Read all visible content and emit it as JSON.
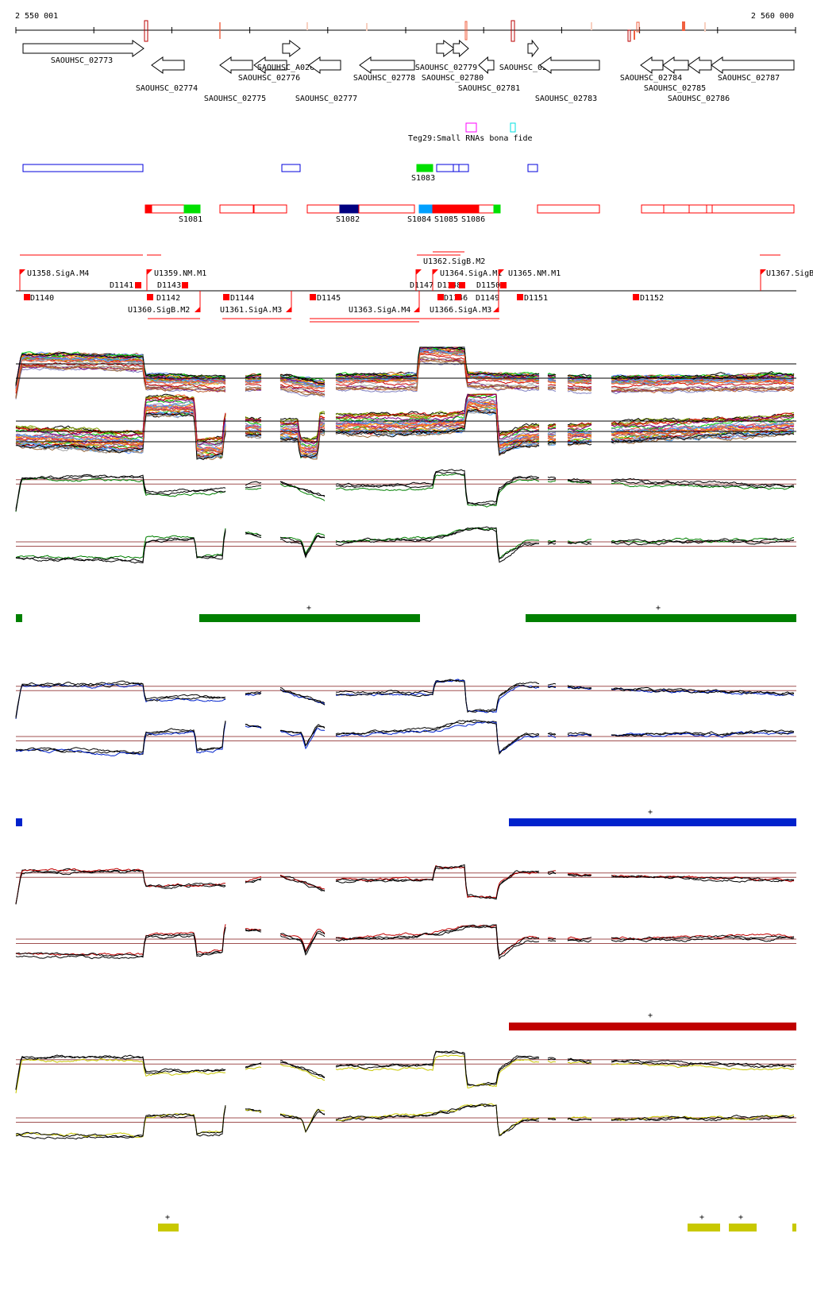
{
  "ruler": {
    "start_label": "2 550 001",
    "end_label": "2 560 000"
  },
  "genes": [
    {
      "id": "SAOUHSC_02773",
      "strand": "+"
    },
    {
      "id": "SAOUHSC_02774",
      "strand": "-"
    },
    {
      "id": "SAOUHSC_02775",
      "strand": "-"
    },
    {
      "id": "SAOUHSC_02776",
      "strand": "-"
    },
    {
      "id": "SAOUHSC_A02635",
      "strand": "+"
    },
    {
      "id": "SAOUHSC_02777",
      "strand": "-"
    },
    {
      "id": "SAOUHSC_02778",
      "strand": "-"
    },
    {
      "id": "SAOUHSC_02779",
      "strand": "+"
    },
    {
      "id": "SAOUHSC_02780",
      "strand": "+"
    },
    {
      "id": "SAOUHSC_02781",
      "strand": "-"
    },
    {
      "id": "SAOUHSC_02782",
      "strand": "+"
    },
    {
      "id": "SAOUHSC_02783",
      "strand": "-"
    },
    {
      "id": "SAOUHSC_02784",
      "strand": "-"
    },
    {
      "id": "SAOUHSC_02785",
      "strand": "-"
    },
    {
      "id": "SAOUHSC_02786",
      "strand": "-"
    },
    {
      "id": "SAOUHSC_02787",
      "strand": "-"
    }
  ],
  "small_rna_track": {
    "label": "Teg29:Small RNAs bona fide",
    "colors": [
      "#ff00ff",
      "#00ffff"
    ]
  },
  "segments": {
    "blue_row": [
      "S1083"
    ],
    "red_row": [
      "S1081",
      "S1082",
      "S1084",
      "S1085",
      "S1086"
    ]
  },
  "promoters_above": [
    "U1358.SigA.M4",
    "U1359.NM.M1",
    "U1362.SigB.M2",
    "U1364.SigA.M1",
    "U1365.NM.M1",
    "U1367.SigB"
  ],
  "promoters_below": [
    "U1360.SigB.M2",
    "U1361.SigA.M3",
    "U1363.SigA.M4",
    "U1366.SigA.M3"
  ],
  "terminators_above": [
    "D1141",
    "D1143",
    "D1147",
    "D1148",
    "D1150"
  ],
  "terminators_below": [
    "D1140",
    "D1142",
    "D1144",
    "D1145",
    "D1146",
    "D1149",
    "D1151",
    "D1152"
  ],
  "condition_colors": {
    "green": "#008000",
    "blue": "#0022cc",
    "red": "#c00000",
    "yellow": "#c8c800",
    "reference": "#a05050"
  },
  "marker_symbol": "+"
}
